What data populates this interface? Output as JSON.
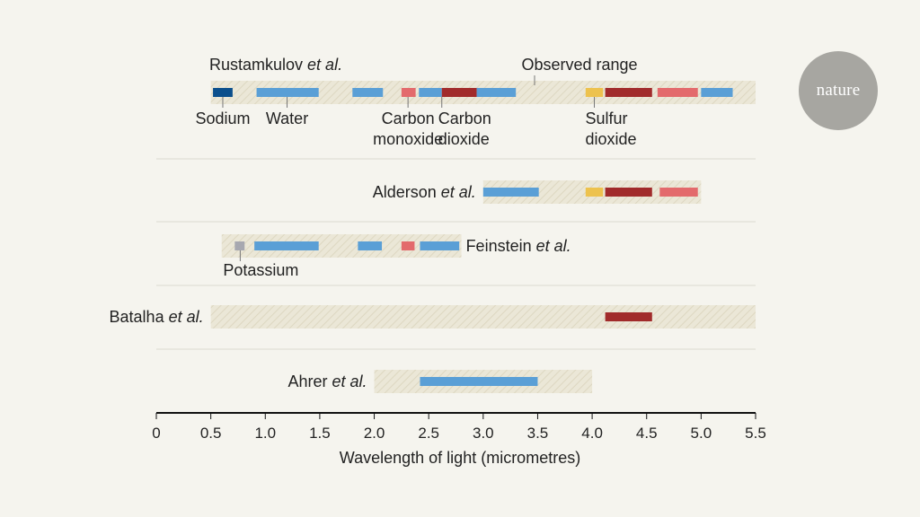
{
  "brand": {
    "logo_text": "nature"
  },
  "chart_data": {
    "type": "range",
    "xlabel": "Wavelength of light (micrometres)",
    "xlim": [
      0,
      5.5
    ],
    "x_ticks": [
      "0",
      "0.5",
      "1.0",
      "1.5",
      "2.0",
      "2.5",
      "3.0",
      "3.5",
      "4.0",
      "4.5",
      "5.0",
      "5.5"
    ],
    "molecule_colors": {
      "sodium": "#0b4f8c",
      "water": "#5a9fd6",
      "carbon_monoxide": "#e36a6c",
      "carbon_dioxide": "#a12b2b",
      "sulfur_dioxide": "#edc24e",
      "potassium": "#a7a8b0"
    },
    "range_label": "Observed range",
    "studies": [
      {
        "author": "Rustamkulov",
        "suffix": "et al.",
        "range": [
          0.5,
          5.5
        ],
        "bands": [
          {
            "molecule": "sodium",
            "x": [
              0.52,
              0.7
            ]
          },
          {
            "molecule": "water",
            "x": [
              0.92,
              1.49
            ]
          },
          {
            "molecule": "water",
            "x": [
              1.8,
              2.08
            ]
          },
          {
            "molecule": "carbon_monoxide",
            "x": [
              2.25,
              2.38
            ]
          },
          {
            "molecule": "water",
            "x": [
              2.41,
              2.62
            ]
          },
          {
            "molecule": "carbon_dioxide",
            "x": [
              2.62,
              2.94
            ]
          },
          {
            "molecule": "water",
            "x": [
              2.94,
              3.3
            ]
          },
          {
            "molecule": "sulfur_dioxide",
            "x": [
              3.94,
              4.1
            ]
          },
          {
            "molecule": "carbon_dioxide",
            "x": [
              4.12,
              4.55
            ]
          },
          {
            "molecule": "carbon_monoxide",
            "x": [
              4.6,
              4.97
            ]
          },
          {
            "molecule": "water",
            "x": [
              5.0,
              5.29
            ]
          }
        ]
      },
      {
        "author": "Alderson",
        "suffix": "et al.",
        "range": [
          3.0,
          5.0
        ],
        "bands": [
          {
            "molecule": "water",
            "x": [
              3.0,
              3.51
            ]
          },
          {
            "molecule": "sulfur_dioxide",
            "x": [
              3.94,
              4.1
            ]
          },
          {
            "molecule": "carbon_dioxide",
            "x": [
              4.12,
              4.55
            ]
          },
          {
            "molecule": "carbon_monoxide",
            "x": [
              4.62,
              4.97
            ]
          }
        ]
      },
      {
        "author": "Feinstein",
        "suffix": "et al.",
        "range": [
          0.6,
          2.8
        ],
        "bands": [
          {
            "molecule": "potassium",
            "x": [
              0.72,
              0.81
            ]
          },
          {
            "molecule": "water",
            "x": [
              0.9,
              1.49
            ]
          },
          {
            "molecule": "water",
            "x": [
              1.85,
              2.07
            ]
          },
          {
            "molecule": "carbon_monoxide",
            "x": [
              2.25,
              2.37
            ]
          },
          {
            "molecule": "water",
            "x": [
              2.42,
              2.78
            ]
          }
        ]
      },
      {
        "author": "Batalha",
        "suffix": "et al.",
        "range": [
          0.5,
          5.5
        ],
        "bands": [
          {
            "molecule": "carbon_dioxide",
            "x": [
              4.12,
              4.55
            ]
          }
        ]
      },
      {
        "author": "Ahrer",
        "suffix": "et al.",
        "range": [
          2.0,
          4.0
        ],
        "bands": [
          {
            "molecule": "water",
            "x": [
              2.42,
              3.5
            ]
          }
        ]
      }
    ],
    "annotations": [
      {
        "lines": [
          "Sodium"
        ],
        "x": 0.61
      },
      {
        "lines": [
          "Water"
        ],
        "x": 1.2
      },
      {
        "lines": [
          "Carbon",
          "monoxide"
        ],
        "x": 2.31
      },
      {
        "lines": [
          "Carbon",
          "dioxide"
        ],
        "x": 2.62
      },
      {
        "lines": [
          "Sulfur",
          "dioxide"
        ],
        "x": 4.02
      },
      {
        "lines": [
          "Potassium"
        ],
        "x": 0.77
      }
    ]
  }
}
